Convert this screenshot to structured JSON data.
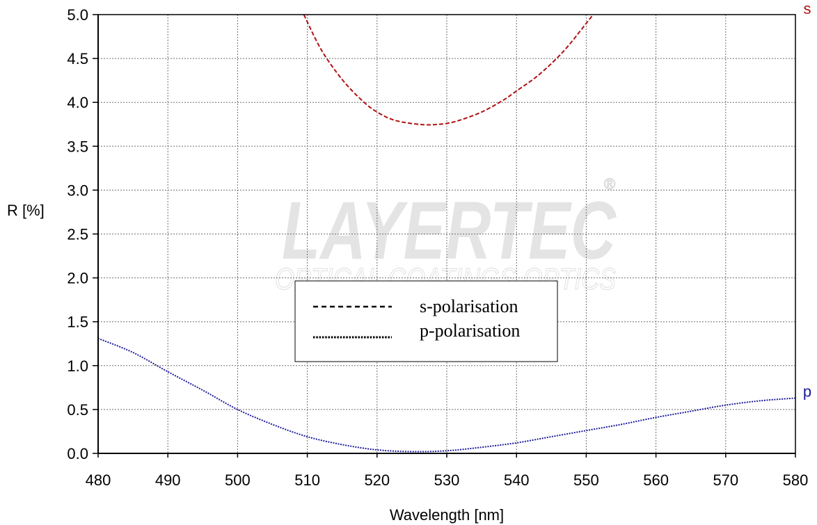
{
  "chart_data": {
    "type": "line",
    "xlabel": "Wavelength [nm]",
    "ylabel": "R [%]",
    "xlim": [
      480,
      580
    ],
    "ylim": [
      0,
      5
    ],
    "x_ticks": [
      480,
      490,
      500,
      510,
      520,
      530,
      540,
      550,
      560,
      570,
      580
    ],
    "y_ticks": [
      "0.0",
      "0.5",
      "1.0",
      "1.5",
      "2.0",
      "2.5",
      "3.0",
      "3.5",
      "4.0",
      "4.5",
      "5.0"
    ],
    "grid": true,
    "legend_position": "center",
    "series": [
      {
        "name": "s-polarisation",
        "end_label": "s",
        "color": "#b01010",
        "dash": "dashed",
        "x": [
          509.5,
          512,
          515,
          518,
          520,
          522,
          524,
          526,
          527,
          528,
          530,
          532,
          535,
          538,
          540,
          543,
          546,
          548,
          550,
          551
        ],
        "y": [
          5.0,
          4.6,
          4.26,
          4.01,
          3.89,
          3.81,
          3.77,
          3.75,
          3.745,
          3.745,
          3.76,
          3.8,
          3.89,
          4.02,
          4.13,
          4.3,
          4.52,
          4.7,
          4.9,
          5.0
        ]
      },
      {
        "name": "p-polarisation",
        "end_label": "p",
        "color": "#1a1a9a",
        "dash": "dotted",
        "x": [
          480,
          485,
          490,
          495,
          500,
          505,
          510,
          515,
          520,
          525,
          530,
          535,
          540,
          545,
          550,
          555,
          560,
          565,
          570,
          575,
          580
        ],
        "y": [
          1.31,
          1.15,
          0.93,
          0.72,
          0.5,
          0.33,
          0.19,
          0.1,
          0.04,
          0.02,
          0.03,
          0.07,
          0.12,
          0.19,
          0.26,
          0.33,
          0.41,
          0.48,
          0.55,
          0.6,
          0.63
        ]
      }
    ]
  },
  "legend": {
    "items": [
      "s-polarisation",
      "p-polarisation"
    ]
  },
  "watermark": {
    "brand": "LAYERTEC",
    "tagline": "OPTICAL COATINGS   OPTICS",
    "registered": "®"
  }
}
